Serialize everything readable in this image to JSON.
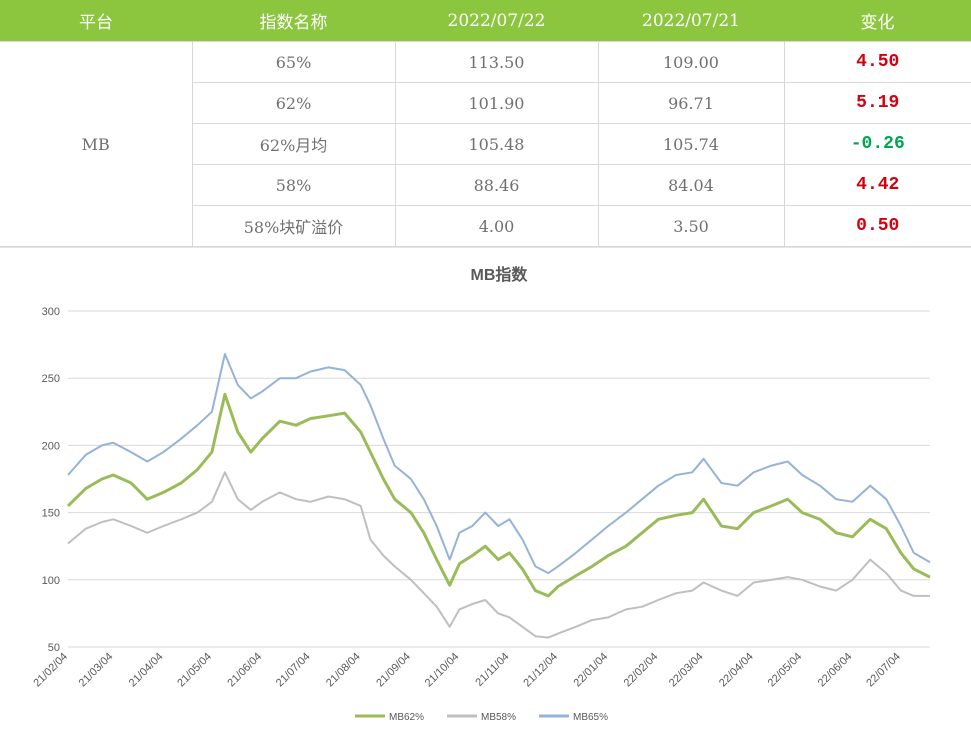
{
  "table": {
    "headers": [
      "平台",
      "指数名称",
      "2022/07/22",
      "2022/07/21",
      "变化"
    ],
    "platform": "MB",
    "rows": [
      {
        "name": "65%",
        "v1": "113.50",
        "v2": "109.00",
        "chg": "4.50"
      },
      {
        "name": "62%",
        "v1": "101.90",
        "v2": "96.71",
        "chg": "5.19"
      },
      {
        "name": "62%月均",
        "v1": "105.48",
        "v2": "105.74",
        "chg": "-0.26"
      },
      {
        "name": "58%",
        "v1": "88.46",
        "v2": "84.04",
        "chg": "4.42"
      },
      {
        "name": "58%块矿溢价",
        "v1": "4.00",
        "v2": "3.50",
        "chg": "0.50"
      }
    ]
  },
  "colors": {
    "header_bg": "#8cc63f",
    "up": "#d4000f",
    "down": "#00a651",
    "mb62": "#9bbb59",
    "mb58": "#bfbfbf",
    "mb65": "#95b3d7"
  },
  "chart_data": {
    "type": "line",
    "title": "MB指数",
    "xlabel": "",
    "ylabel": "",
    "ylim": [
      50,
      300
    ],
    "yticks": [
      50,
      100,
      150,
      200,
      250,
      300
    ],
    "grid": true,
    "legend": "bottom",
    "x_range": [
      "2021-02-04",
      "2022-07-22"
    ],
    "x_ticks": [
      "21/02/04",
      "21/03/04",
      "21/04/04",
      "21/05/04",
      "21/06/04",
      "21/07/04",
      "21/08/04",
      "21/09/04",
      "21/10/04",
      "21/11/04",
      "21/12/04",
      "22/01/04",
      "22/02/04",
      "22/03/04",
      "22/04/04",
      "22/05/04",
      "22/06/04",
      "22/07/04"
    ],
    "x_tick_dates": [
      "2021-02-04",
      "2021-03-04",
      "2021-04-04",
      "2021-05-04",
      "2021-06-04",
      "2021-07-04",
      "2021-08-04",
      "2021-09-04",
      "2021-10-04",
      "2021-11-04",
      "2021-12-04",
      "2022-01-04",
      "2022-02-04",
      "2022-03-04",
      "2022-04-04",
      "2022-05-04",
      "2022-06-04",
      "2022-07-04"
    ],
    "series": [
      {
        "name": "MB62%",
        "color": "#9bbb59",
        "x": [
          "2021-02-04",
          "2021-02-15",
          "2021-02-25",
          "2021-03-04",
          "2021-03-15",
          "2021-03-25",
          "2021-04-04",
          "2021-04-15",
          "2021-04-25",
          "2021-05-04",
          "2021-05-12",
          "2021-05-20",
          "2021-05-28",
          "2021-06-04",
          "2021-06-15",
          "2021-06-25",
          "2021-07-04",
          "2021-07-15",
          "2021-07-25",
          "2021-08-04",
          "2021-08-10",
          "2021-08-18",
          "2021-08-25",
          "2021-09-04",
          "2021-09-12",
          "2021-09-20",
          "2021-09-28",
          "2021-10-04",
          "2021-10-12",
          "2021-10-20",
          "2021-10-28",
          "2021-11-04",
          "2021-11-12",
          "2021-11-20",
          "2021-11-28",
          "2021-12-04",
          "2021-12-15",
          "2021-12-25",
          "2022-01-04",
          "2022-01-15",
          "2022-01-25",
          "2022-02-04",
          "2022-02-15",
          "2022-02-25",
          "2022-03-04",
          "2022-03-15",
          "2022-03-25",
          "2022-04-04",
          "2022-04-15",
          "2022-04-25",
          "2022-05-04",
          "2022-05-15",
          "2022-05-25",
          "2022-06-04",
          "2022-06-15",
          "2022-06-25",
          "2022-07-04",
          "2022-07-12",
          "2022-07-22"
        ],
        "y": [
          155,
          168,
          175,
          178,
          172,
          160,
          165,
          172,
          182,
          195,
          238,
          210,
          195,
          205,
          218,
          215,
          220,
          222,
          224,
          210,
          195,
          175,
          160,
          150,
          135,
          115,
          96,
          112,
          118,
          125,
          115,
          120,
          108,
          92,
          88,
          95,
          103,
          110,
          118,
          125,
          135,
          145,
          148,
          150,
          160,
          140,
          138,
          150,
          155,
          160,
          150,
          145,
          135,
          132,
          145,
          138,
          120,
          108,
          102
        ]
      },
      {
        "name": "MB58%",
        "color": "#bfbfbf",
        "x": [
          "2021-02-04",
          "2021-02-15",
          "2021-02-25",
          "2021-03-04",
          "2021-03-15",
          "2021-03-25",
          "2021-04-04",
          "2021-04-15",
          "2021-04-25",
          "2021-05-04",
          "2021-05-12",
          "2021-05-20",
          "2021-05-28",
          "2021-06-04",
          "2021-06-15",
          "2021-06-25",
          "2021-07-04",
          "2021-07-15",
          "2021-07-25",
          "2021-08-04",
          "2021-08-10",
          "2021-08-18",
          "2021-08-25",
          "2021-09-04",
          "2021-09-12",
          "2021-09-20",
          "2021-09-28",
          "2021-10-04",
          "2021-10-12",
          "2021-10-20",
          "2021-10-28",
          "2021-11-04",
          "2021-11-12",
          "2021-11-20",
          "2021-11-28",
          "2021-12-04",
          "2021-12-15",
          "2021-12-25",
          "2022-01-04",
          "2022-01-15",
          "2022-01-25",
          "2022-02-04",
          "2022-02-15",
          "2022-02-25",
          "2022-03-04",
          "2022-03-15",
          "2022-03-25",
          "2022-04-04",
          "2022-04-15",
          "2022-04-25",
          "2022-05-04",
          "2022-05-15",
          "2022-05-25",
          "2022-06-04",
          "2022-06-15",
          "2022-06-25",
          "2022-07-04",
          "2022-07-12",
          "2022-07-22"
        ],
        "y": [
          127,
          138,
          143,
          145,
          140,
          135,
          140,
          145,
          150,
          158,
          180,
          160,
          152,
          158,
          165,
          160,
          158,
          162,
          160,
          155,
          130,
          118,
          110,
          100,
          90,
          80,
          65,
          78,
          82,
          85,
          75,
          72,
          65,
          58,
          57,
          60,
          65,
          70,
          72,
          78,
          80,
          85,
          90,
          92,
          98,
          92,
          88,
          98,
          100,
          102,
          100,
          95,
          92,
          100,
          115,
          105,
          92,
          88,
          88
        ]
      },
      {
        "name": "MB65%",
        "color": "#95b3d7",
        "x": [
          "2021-02-04",
          "2021-02-15",
          "2021-02-25",
          "2021-03-04",
          "2021-03-15",
          "2021-03-25",
          "2021-04-04",
          "2021-04-15",
          "2021-04-25",
          "2021-05-04",
          "2021-05-12",
          "2021-05-20",
          "2021-05-28",
          "2021-06-04",
          "2021-06-15",
          "2021-06-25",
          "2021-07-04",
          "2021-07-15",
          "2021-07-25",
          "2021-08-04",
          "2021-08-10",
          "2021-08-18",
          "2021-08-25",
          "2021-09-04",
          "2021-09-12",
          "2021-09-20",
          "2021-09-28",
          "2021-10-04",
          "2021-10-12",
          "2021-10-20",
          "2021-10-28",
          "2021-11-04",
          "2021-11-12",
          "2021-11-20",
          "2021-11-28",
          "2021-12-04",
          "2021-12-15",
          "2021-12-25",
          "2022-01-04",
          "2022-01-15",
          "2022-01-25",
          "2022-02-04",
          "2022-02-15",
          "2022-02-25",
          "2022-03-04",
          "2022-03-15",
          "2022-03-25",
          "2022-04-04",
          "2022-04-15",
          "2022-04-25",
          "2022-05-04",
          "2022-05-15",
          "2022-05-25",
          "2022-06-04",
          "2022-06-15",
          "2022-06-25",
          "2022-07-04",
          "2022-07-12",
          "2022-07-22"
        ],
        "y": [
          178,
          193,
          200,
          202,
          195,
          188,
          195,
          205,
          215,
          225,
          268,
          245,
          235,
          240,
          250,
          250,
          255,
          258,
          256,
          245,
          230,
          205,
          185,
          175,
          160,
          140,
          115,
          135,
          140,
          150,
          140,
          145,
          130,
          110,
          105,
          110,
          120,
          130,
          140,
          150,
          160,
          170,
          178,
          180,
          190,
          172,
          170,
          180,
          185,
          188,
          178,
          170,
          160,
          158,
          170,
          160,
          140,
          120,
          113
        ]
      }
    ]
  }
}
